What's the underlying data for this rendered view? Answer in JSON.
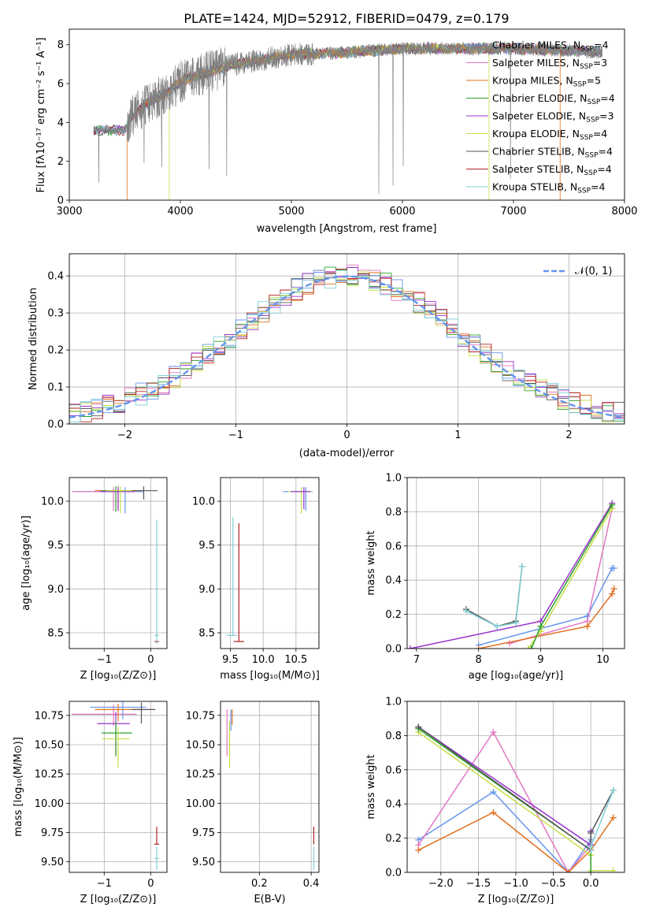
{
  "title": "PLATE=1424, MJD=52912, FIBERID=0479, z=0.179",
  "colors": {
    "chab_miles": "#6495ed",
    "salp_miles": "#e377c2",
    "krou_miles": "#e07020",
    "chab_elodie": "#2ca02c",
    "salp_elodie": "#9932cc",
    "krou_elodie": "#c6e04a",
    "chab_stelib": "#555555",
    "salp_stelib": "#b22222",
    "krou_stelib": "#7fcfd6",
    "data": "#808080",
    "normal": "#6495ed"
  },
  "legend": [
    {
      "label": "Chabrier MILES, N",
      "sub": "SSP",
      "tail": "=4"
    },
    {
      "label": "Salpeter MILES, N",
      "sub": "SSP",
      "tail": "=3"
    },
    {
      "label": "Kroupa MILES, N",
      "sub": "SSP",
      "tail": "=5"
    },
    {
      "label": "Chabrier ELODIE, N",
      "sub": "SSP",
      "tail": "=4"
    },
    {
      "label": "Salpeter ELODIE, N",
      "sub": "SSP",
      "tail": "=3"
    },
    {
      "label": "Kroupa ELODIE, N",
      "sub": "SSP",
      "tail": "=4"
    },
    {
      "label": "Chabrier STELIB, N",
      "sub": "SSP",
      "tail": "=4"
    },
    {
      "label": "Salpeter STELIB, N",
      "sub": "SSP",
      "tail": "=4"
    },
    {
      "label": "Kroupa STELIB, N",
      "sub": "SSP",
      "tail": "=4"
    }
  ],
  "labels": {
    "spec_x": "wavelength [Angstrom, rest frame]",
    "spec_y": "Flux [fλ10⁻¹⁷ erg cm⁻² s⁻¹ A⁻¹]",
    "hist_x": "(data-model)/error",
    "hist_y": "Normed distribution",
    "hist_legend": "𝒩(0, 1)",
    "z_label": "Z [log₁₀(Z/Z⊙)]",
    "age_label": "age  [log₁₀(age/yr)]",
    "mass_label": "mass [log₁₀(M/M⊙)]",
    "weight_label": "mass weight",
    "ebv_label": "E(B-V)"
  },
  "chart_data": [
    {
      "type": "line",
      "name": "spectrum",
      "xlim": [
        3000,
        8000
      ],
      "ylim": [
        0,
        8.8
      ],
      "xticks": [
        3000,
        4000,
        5000,
        6000,
        7000,
        8000
      ],
      "yticks": [
        0,
        2,
        4,
        6,
        8
      ],
      "data_range": [
        3220,
        7800
      ],
      "continuum": {
        "x": [
          3220,
          3500,
          3550,
          3700,
          3900,
          4000,
          4200,
          4500,
          5000,
          5500,
          6000,
          6500,
          7000,
          7500,
          7800
        ],
        "y": [
          3.6,
          3.6,
          4.2,
          5.0,
          5.6,
          6.1,
          6.5,
          7.0,
          7.5,
          7.6,
          7.8,
          7.8,
          7.8,
          7.7,
          7.6
        ]
      },
      "model_cutoffs": {
        "krou_miles_blue": 3520,
        "krou_miles_red": 7420,
        "krou_elodie_blue": 3900,
        "krou_elodie_red": 6780
      }
    },
    {
      "type": "step",
      "name": "residual histogram",
      "xlim": [
        -2.5,
        2.5
      ],
      "ylim": [
        0,
        0.46
      ],
      "xticks": [
        -2,
        -1,
        0,
        1,
        2
      ],
      "yticks": [
        0.0,
        0.1,
        0.2,
        0.3,
        0.4
      ],
      "normal": {
        "mu": 0,
        "sigma": 1
      }
    },
    {
      "type": "scatter",
      "name": "age vs Z",
      "xlim": [
        -1.75,
        0.35
      ],
      "ylim": [
        8.32,
        10.27
      ],
      "xticks": [
        -1,
        0
      ],
      "yticks": [
        8.5,
        9.0,
        9.5,
        10.0
      ],
      "points": [
        {
          "s": "chab_miles",
          "x": -0.55,
          "y": 10.11,
          "xl": 1.1,
          "xh": 0.4,
          "yl": 0.25,
          "yh": 0.05
        },
        {
          "s": "salp_miles",
          "x": -0.8,
          "y": 10.11,
          "xl": 0.9,
          "xh": 0.5,
          "yl": 0.22,
          "yh": 0.05
        },
        {
          "s": "krou_miles",
          "x": -0.7,
          "y": 10.12,
          "xl": 0.5,
          "xh": 0.5,
          "yl": 0.2,
          "yh": 0.05
        },
        {
          "s": "chab_elodie",
          "x": -0.75,
          "y": 10.12,
          "xl": 0.3,
          "xh": 0.4,
          "yl": 0.24,
          "yh": 0.05
        },
        {
          "s": "salp_elodie",
          "x": -0.7,
          "y": 10.11,
          "xl": 0.4,
          "xh": 0.35,
          "yl": 0.22,
          "yh": 0.05
        },
        {
          "s": "krou_elodie",
          "x": -0.65,
          "y": 10.12,
          "xl": 0.3,
          "xh": 0.25,
          "yl": 0.26,
          "yh": 0.05
        },
        {
          "s": "chab_stelib",
          "x": -0.15,
          "y": 10.12,
          "xl": 0.2,
          "xh": 0.3,
          "yl": 0.1,
          "yh": 0.05
        },
        {
          "s": "salp_stelib",
          "x": 0.13,
          "y": 8.4,
          "xl": 0.05,
          "xh": 0.05,
          "yl": 0.0,
          "yh": 0.0
        },
        {
          "s": "krou_stelib",
          "x": 0.13,
          "y": 8.47,
          "xl": 0.05,
          "xh": 0.05,
          "yl": 0.1,
          "yh": 1.32
        }
      ]
    },
    {
      "type": "scatter",
      "name": "age vs mass",
      "xlim": [
        9.35,
        10.85
      ],
      "ylim": [
        8.32,
        10.27
      ],
      "xticks": [
        9.5,
        10.0,
        10.5
      ],
      "yticks": [
        8.5,
        9.0,
        9.5,
        10.0
      ],
      "points": [
        {
          "s": "chab_miles",
          "x": 10.65,
          "y": 10.11,
          "xl": 0.35,
          "xh": 0.1,
          "yl": 0.22,
          "yh": 0.05
        },
        {
          "s": "krou_elodie",
          "x": 10.58,
          "y": 10.11,
          "xl": 0.2,
          "xh": 0.15,
          "yl": 0.25,
          "yh": 0.05
        },
        {
          "s": "salp_elodie",
          "x": 10.62,
          "y": 10.11,
          "xl": 0.2,
          "xh": 0.1,
          "yl": 0.2,
          "yh": 0.05
        },
        {
          "s": "salp_stelib",
          "x": 9.63,
          "y": 8.4,
          "xl": 0.08,
          "xh": 0.08,
          "yl": 0.0,
          "yh": 1.35
        },
        {
          "s": "krou_stelib",
          "x": 9.54,
          "y": 8.47,
          "xl": 0.1,
          "xh": 0.06,
          "yl": 0.0,
          "yh": 1.35
        }
      ]
    },
    {
      "type": "line",
      "name": "mass weight vs age",
      "xlim": [
        6.85,
        10.35
      ],
      "ylim": [
        0,
        1
      ],
      "xticks": [
        7,
        8,
        9,
        10
      ],
      "yticks": [
        0.0,
        0.2,
        0.4,
        0.6,
        0.8,
        1.0
      ],
      "series": [
        {
          "s": "chab_miles",
          "x": [
            8.0,
            9.75,
            10.15,
            10.18
          ],
          "y": [
            0.02,
            0.19,
            0.47,
            0.47
          ]
        },
        {
          "s": "salp_miles",
          "x": [
            8.5,
            9.75,
            10.15
          ],
          "y": [
            0.03,
            0.16,
            0.82
          ]
        },
        {
          "s": "krou_miles",
          "x": [
            8.0,
            9.75,
            10.15,
            10.18
          ],
          "y": [
            0.0,
            0.13,
            0.32,
            0.35
          ]
        },
        {
          "s": "salp_elodie",
          "x": [
            6.9,
            9.0,
            10.15
          ],
          "y": [
            0.0,
            0.16,
            0.85
          ]
        },
        {
          "s": "krou_elodie",
          "x": [
            8.8,
            9.0,
            10.15
          ],
          "y": [
            0.0,
            0.1,
            0.82
          ]
        },
        {
          "s": "chab_elodie",
          "x": [
            8.85,
            9.0,
            10.15
          ],
          "y": [
            0.0,
            0.13,
            0.84
          ]
        },
        {
          "s": "chab_stelib",
          "x": [
            7.8,
            8.3,
            8.6,
            8.7
          ],
          "y": [
            0.23,
            0.13,
            0.16,
            0.48
          ]
        },
        {
          "s": "krou_stelib",
          "x": [
            7.8,
            8.3,
            8.6,
            8.7
          ],
          "y": [
            0.22,
            0.13,
            0.15,
            0.48
          ]
        }
      ]
    },
    {
      "type": "scatter",
      "name": "mass vs Z",
      "xlim": [
        -1.75,
        0.35
      ],
      "ylim": [
        9.41,
        10.87
      ],
      "xticks": [
        -1,
        0
      ],
      "yticks": [
        9.5,
        9.75,
        10.0,
        10.25,
        10.5,
        10.75
      ],
      "points": [
        {
          "s": "salp_miles",
          "x": -0.8,
          "y": 10.76,
          "xl": 0.9,
          "xh": 0.5,
          "yl": 0.1,
          "yh": 0.08
        },
        {
          "s": "chab_miles",
          "x": -0.6,
          "y": 10.82,
          "xl": 0.7,
          "xh": 0.5,
          "yl": 0.1,
          "yh": 0.05
        },
        {
          "s": "krou_miles",
          "x": -0.7,
          "y": 10.8,
          "xl": 0.5,
          "xh": 0.55,
          "yl": 0.1,
          "yh": 0.05
        },
        {
          "s": "salp_elodie",
          "x": -0.75,
          "y": 10.68,
          "xl": 0.4,
          "xh": 0.3,
          "yl": 0.25,
          "yh": 0.1
        },
        {
          "s": "chab_elodie",
          "x": -0.75,
          "y": 10.6,
          "xl": 0.3,
          "xh": 0.35,
          "yl": 0.2,
          "yh": 0.1
        },
        {
          "s": "krou_elodie",
          "x": -0.7,
          "y": 10.55,
          "xl": 0.35,
          "xh": 0.25,
          "yl": 0.25,
          "yh": 0.1
        },
        {
          "s": "chab_stelib",
          "x": -0.2,
          "y": 10.8,
          "xl": 0.2,
          "xh": 0.3,
          "yl": 0.12,
          "yh": 0.06
        },
        {
          "s": "salp_stelib",
          "x": 0.13,
          "y": 9.65,
          "xl": 0.05,
          "xh": 0.05,
          "yl": 0.0,
          "yh": 0.15
        },
        {
          "s": "krou_stelib",
          "x": 0.13,
          "y": 9.53,
          "xl": 0.05,
          "xh": 0.05,
          "yl": 0.1,
          "yh": 0.1
        }
      ]
    },
    {
      "type": "scatter",
      "name": "mass vs E(B-V)",
      "xlim": [
        0.05,
        0.43
      ],
      "ylim": [
        9.41,
        10.87
      ],
      "xticks": [
        0.2,
        0.4
      ],
      "yticks": [
        9.5,
        9.75,
        10.0,
        10.25,
        10.5,
        10.75
      ],
      "points": [
        {
          "s": "salp_miles",
          "x": 0.075,
          "y": 10.65,
          "xl": 0,
          "xh": 0,
          "yl": 0.25,
          "yh": 0.15
        },
        {
          "s": "krou_elodie",
          "x": 0.085,
          "y": 10.55,
          "xl": 0,
          "xh": 0,
          "yl": 0.25,
          "yh": 0.15
        },
        {
          "s": "chab_miles",
          "x": 0.09,
          "y": 10.72,
          "xl": 0,
          "xh": 0,
          "yl": 0.1,
          "yh": 0.08
        },
        {
          "s": "krou_miles",
          "x": 0.095,
          "y": 10.75,
          "xl": 0,
          "xh": 0,
          "yl": 0.08,
          "yh": 0.05
        },
        {
          "s": "salp_stelib",
          "x": 0.41,
          "y": 9.65,
          "xl": 0,
          "xh": 0,
          "yl": 0.0,
          "yh": 0.15
        },
        {
          "s": "krou_stelib",
          "x": 0.41,
          "y": 9.53,
          "xl": 0,
          "xh": 0,
          "yl": 0.1,
          "yh": 0.1
        }
      ]
    },
    {
      "type": "line",
      "name": "mass weight vs Z",
      "xlim": [
        -2.45,
        0.45
      ],
      "ylim": [
        0,
        1
      ],
      "xticks": [
        -2.0,
        -1.5,
        -1.0,
        -0.5,
        0.0
      ],
      "yticks": [
        0.0,
        0.2,
        0.4,
        0.6,
        0.8,
        1.0
      ],
      "series": [
        {
          "s": "chab_miles",
          "x": [
            -2.3,
            -1.3,
            -0.3,
            0.0
          ],
          "y": [
            0.19,
            0.47,
            0.0,
            0.19
          ]
        },
        {
          "s": "salp_miles",
          "x": [
            -2.3,
            -1.3,
            -0.3,
            0.0
          ],
          "y": [
            0.16,
            0.82,
            0.0,
            0.16
          ]
        },
        {
          "s": "krou_miles",
          "x": [
            -2.3,
            -1.3,
            -0.3,
            0.0,
            0.3
          ],
          "y": [
            0.13,
            0.35,
            0.0,
            0.13,
            0.32
          ]
        },
        {
          "s": "salp_elodie",
          "x": [
            -2.3,
            0.0,
            0.0
          ],
          "y": [
            0.85,
            0.16,
            0.24
          ]
        },
        {
          "s": "krou_elodie",
          "x": [
            -2.3,
            0.0,
            0.0,
            0.3
          ],
          "y": [
            0.82,
            0.1,
            0.01,
            0.01
          ]
        },
        {
          "s": "chab_elodie",
          "x": [
            -2.3,
            0.0,
            0.0
          ],
          "y": [
            0.84,
            0.13,
            0.0
          ]
        },
        {
          "s": "chab_stelib",
          "x": [
            -2.3,
            0.0,
            0.0,
            0.3
          ],
          "y": [
            0.85,
            0.13,
            0.23,
            0.48
          ]
        },
        {
          "s": "krou_stelib",
          "x": [
            0.0,
            0.0,
            0.3
          ],
          "y": [
            0.13,
            0.15,
            0.48
          ]
        }
      ]
    }
  ]
}
